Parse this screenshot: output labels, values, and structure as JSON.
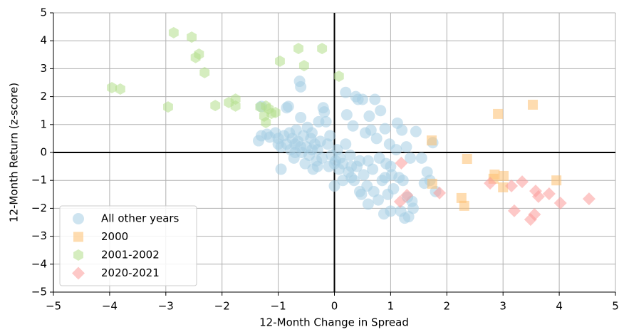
{
  "chart_data": {
    "type": "scatter",
    "xlabel": "12-Month Change in Spread",
    "ylabel": "12-Month Return (z-score)",
    "xlim": [
      -5,
      5
    ],
    "ylim": [
      -5,
      5
    ],
    "xticks": [
      {
        "value": -5,
        "label": "−5"
      },
      {
        "value": -4,
        "label": "−4"
      },
      {
        "value": -3,
        "label": "−3"
      },
      {
        "value": -2,
        "label": "−2"
      },
      {
        "value": -1,
        "label": "−1"
      },
      0,
      1,
      2,
      3,
      4,
      5
    ],
    "yticks": [
      {
        "value": -5,
        "label": "−5"
      },
      {
        "value": -4,
        "label": "−4"
      },
      {
        "value": -3,
        "label": "−3"
      },
      {
        "value": -2,
        "label": "−2"
      },
      {
        "value": -1,
        "label": "−1"
      },
      0,
      1,
      2,
      3,
      4,
      5
    ],
    "grid": true,
    "zero_lines": true,
    "legend": "lower left",
    "series": [
      {
        "name": "All other years",
        "color": "#a6cee3",
        "marker": "circle",
        "x": [
          -1.35,
          -1.3,
          -1.2,
          -1.15,
          -1.3,
          -1.05,
          -1.0,
          -0.95,
          -0.95,
          -0.9,
          -0.85,
          -0.85,
          -0.82,
          -0.8,
          -0.78,
          -0.75,
          -0.72,
          -0.7,
          -0.68,
          -0.65,
          -0.62,
          -0.6,
          -0.6,
          -0.58,
          -0.55,
          -0.52,
          -0.5,
          -0.48,
          -0.45,
          -0.42,
          -0.4,
          -0.38,
          -0.35,
          -0.32,
          -0.3,
          -0.28,
          -0.25,
          -0.22,
          -0.2,
          -0.18,
          -0.15,
          -0.12,
          -0.1,
          -0.08,
          -0.05,
          0.0,
          0.02,
          0.05,
          0.08,
          0.1,
          0.15,
          0.2,
          0.22,
          0.25,
          0.28,
          0.3,
          0.33,
          0.35,
          0.38,
          0.4,
          0.42,
          0.45,
          0.48,
          0.5,
          0.52,
          0.55,
          0.58,
          0.6,
          0.62,
          0.65,
          0.68,
          0.7,
          0.72,
          0.75,
          0.78,
          0.8,
          0.82,
          0.85,
          0.88,
          0.9,
          0.92,
          0.95,
          0.98,
          1.0,
          1.02,
          1.05,
          1.1,
          1.12,
          1.15,
          1.18,
          1.2,
          1.22,
          1.25,
          1.28,
          1.3,
          1.32,
          1.35,
          1.38,
          1.4,
          1.45,
          1.55,
          1.6,
          1.65,
          1.75,
          1.8,
          1.7,
          0.2,
          -0.6,
          -0.4,
          -0.7,
          0.0,
          0.3,
          0.6,
          0.9,
          1.0,
          -1.0,
          -0.3,
          0.15,
          0.45
        ],
        "values": [
          0.42,
          0.6,
          0.65,
          0.55,
          1.65,
          0.7,
          0.5,
          0.2,
          -0.6,
          0.6,
          0.3,
          1.6,
          1.65,
          0.7,
          0.1,
          0.5,
          -0.2,
          0.3,
          0.8,
          0.4,
          2.55,
          2.35,
          1.25,
          0.0,
          0.6,
          -0.4,
          0.2,
          0.9,
          -0.1,
          0.5,
          0.7,
          -0.6,
          0.3,
          -0.3,
          0.1,
          1.1,
          0.4,
          -0.2,
          1.6,
          1.45,
          1.1,
          0.3,
          -0.5,
          0.6,
          -0.1,
          -1.2,
          -0.3,
          0.1,
          -0.6,
          -0.2,
          -0.4,
          2.15,
          1.35,
          -0.7,
          -0.1,
          -0.9,
          0.95,
          -1.0,
          2.0,
          -0.5,
          1.9,
          -0.3,
          -1.5,
          1.9,
          -0.8,
          0.7,
          -1.2,
          -1.85,
          1.3,
          0.8,
          -0.6,
          -1.4,
          1.9,
          0.5,
          -1.7,
          -0.2,
          1.5,
          -1.0,
          -2.2,
          0.85,
          -0.4,
          -1.5,
          0.3,
          -2.1,
          -0.8,
          -1.3,
          0.1,
          1.05,
          -0.9,
          -2.1,
          0.8,
          -1.0,
          -2.35,
          0.2,
          -1.6,
          -2.3,
          -0.2,
          -1.75,
          -2.0,
          0.75,
          -0.2,
          -1.1,
          -0.7,
          0.35,
          -1.4,
          -1.0,
          0.3,
          0.2,
          0.1,
          0.0,
          -0.4,
          -0.5,
          -0.3,
          -0.9,
          -0.5,
          0.3,
          -0.5,
          -1.0,
          -1.4
        ]
      },
      {
        "name": "2000",
        "color": "#fdbf6f",
        "marker": "square",
        "x": [
          2.91,
          3.53,
          1.73,
          2.36,
          2.85,
          3.01,
          3.0,
          3.95,
          1.74,
          2.26,
          2.31,
          2.83
        ],
        "values": [
          1.38,
          1.71,
          0.43,
          -0.23,
          -0.79,
          -0.84,
          -1.25,
          -1.0,
          -1.12,
          -1.63,
          -1.91,
          -0.94
        ]
      },
      {
        "name": "2001-2002",
        "color": "#b2df8a",
        "marker": "hexagon",
        "x": [
          -3.96,
          -3.81,
          -2.86,
          -2.54,
          -2.41,
          -2.47,
          -2.31,
          -2.96,
          -2.12,
          -1.88,
          -1.76,
          -1.76,
          -1.32,
          -1.22,
          -1.17,
          -1.25,
          -1.12,
          -1.05,
          -1.22,
          -0.97,
          -0.64,
          -0.54,
          -0.22,
          0.08
        ],
        "values": [
          2.32,
          2.27,
          4.29,
          4.13,
          3.52,
          3.4,
          2.86,
          1.63,
          1.68,
          1.79,
          1.91,
          1.66,
          1.63,
          1.66,
          1.56,
          1.3,
          1.4,
          1.43,
          1.07,
          3.27,
          3.72,
          3.11,
          3.72,
          2.73
        ]
      },
      {
        "name": "2020-2021",
        "color": "#fb9a99",
        "marker": "diamond",
        "x": [
          1.19,
          1.17,
          1.29,
          1.87,
          2.77,
          3.15,
          3.34,
          3.58,
          3.63,
          3.82,
          4.02,
          4.53,
          3.2,
          3.56,
          3.49
        ],
        "values": [
          -0.38,
          -1.76,
          -1.53,
          -1.45,
          -1.1,
          -1.2,
          -1.05,
          -1.38,
          -1.58,
          -1.48,
          -1.81,
          -1.66,
          -2.09,
          -2.22,
          -2.4
        ]
      }
    ]
  }
}
